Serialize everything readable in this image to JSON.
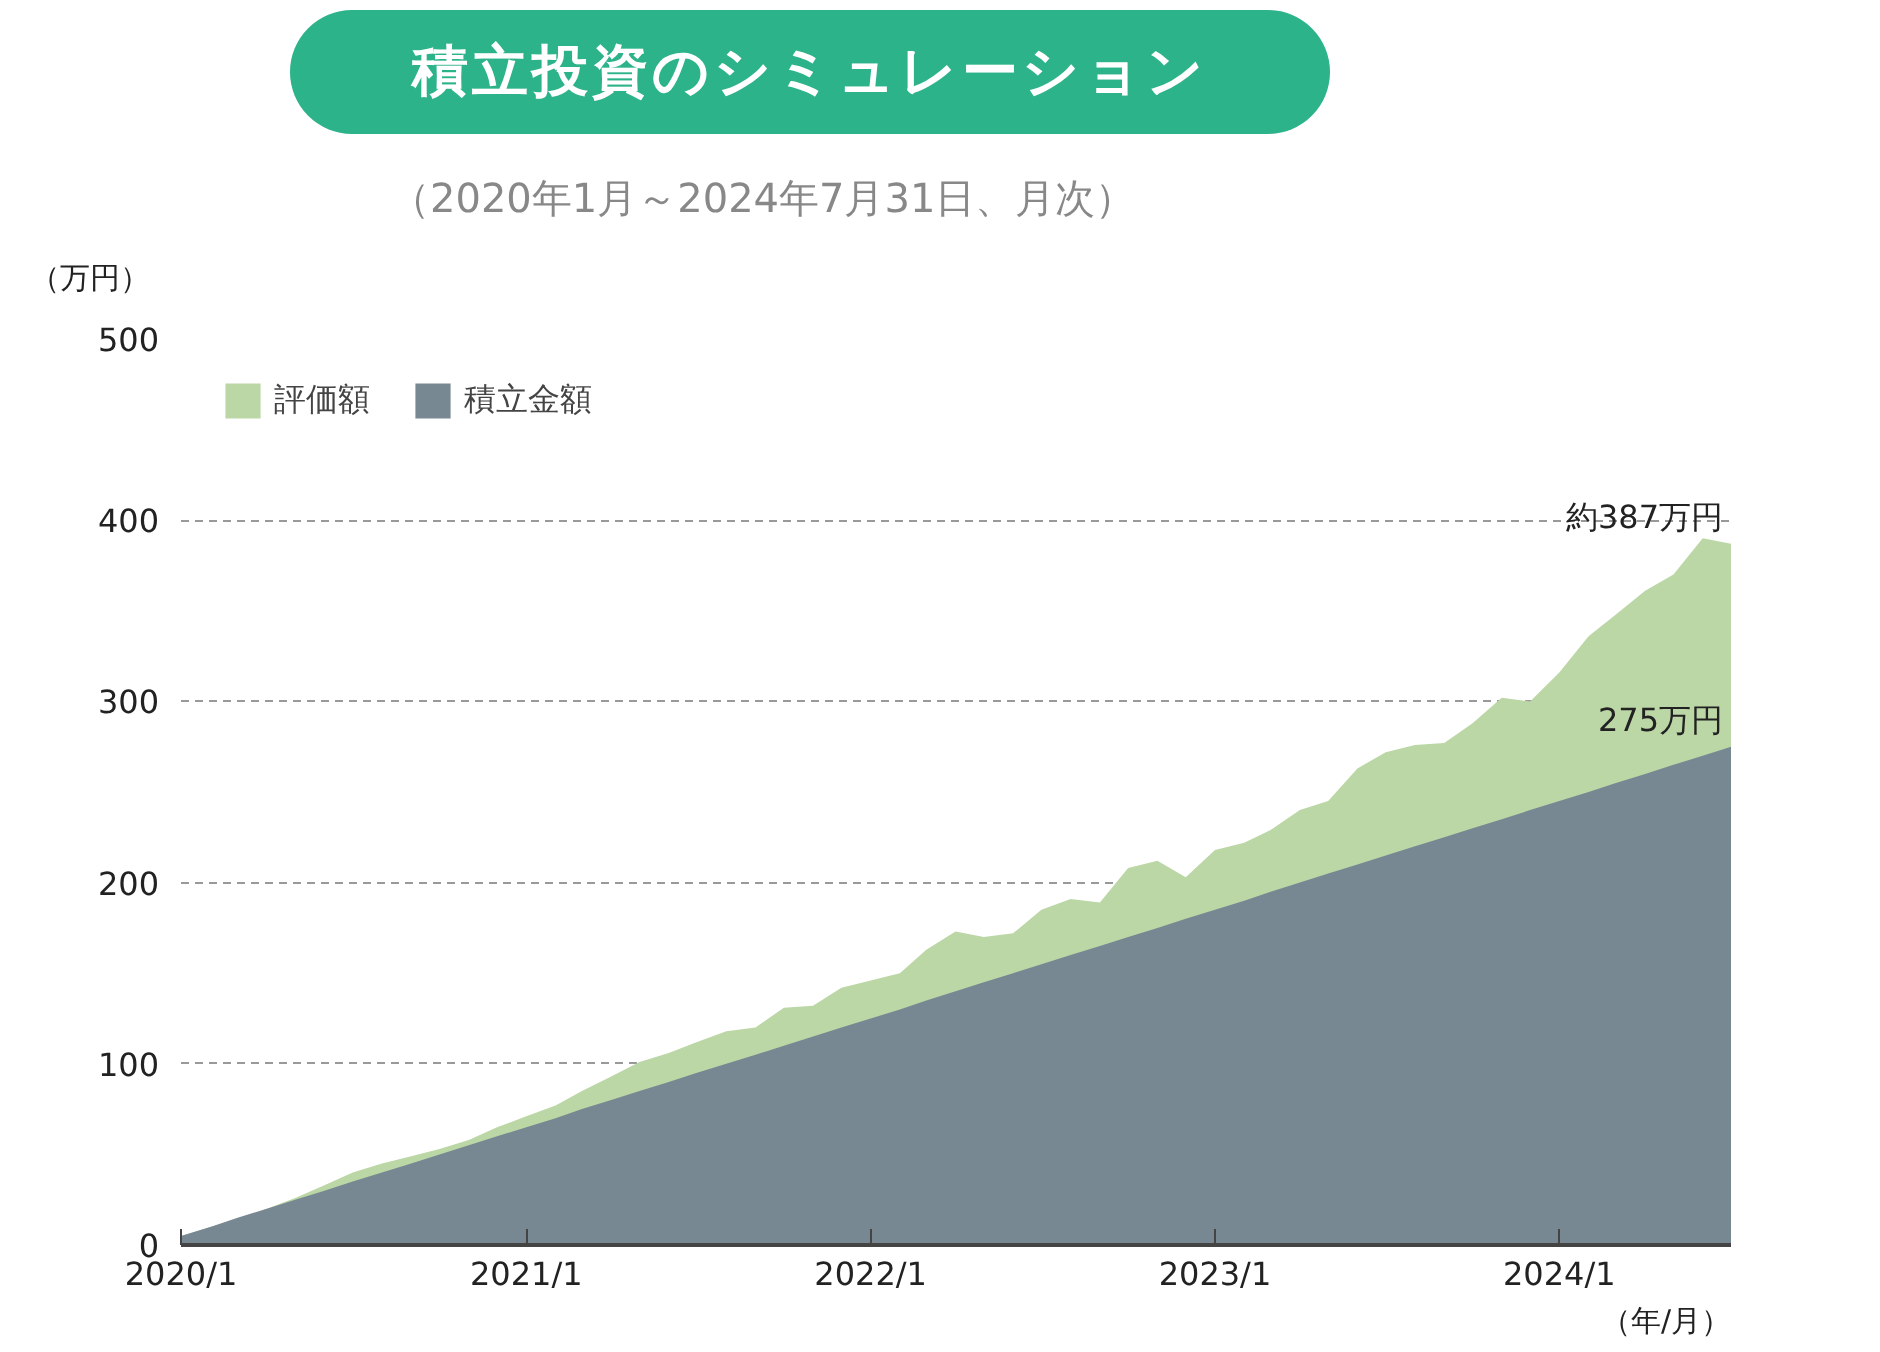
{
  "chart_data": {
    "type": "area",
    "title": "積立投資のシミュレーション",
    "subtitle": "（2020年1月～2024年7月31日、月次）",
    "ylabel": "（万円）",
    "xlabel": "（年/月）",
    "x": [
      "2020-01",
      "2020-02",
      "2020-03",
      "2020-04",
      "2020-05",
      "2020-06",
      "2020-07",
      "2020-08",
      "2020-09",
      "2020-10",
      "2020-11",
      "2020-12",
      "2021-01",
      "2021-02",
      "2021-03",
      "2021-04",
      "2021-05",
      "2021-06",
      "2021-07",
      "2021-08",
      "2021-09",
      "2021-10",
      "2021-11",
      "2021-12",
      "2022-01",
      "2022-02",
      "2022-03",
      "2022-04",
      "2022-05",
      "2022-06",
      "2022-07",
      "2022-08",
      "2022-09",
      "2022-10",
      "2022-11",
      "2022-12",
      "2023-01",
      "2023-02",
      "2023-03",
      "2023-04",
      "2023-05",
      "2023-06",
      "2023-07",
      "2023-08",
      "2023-09",
      "2023-10",
      "2023-11",
      "2023-12",
      "2024-01",
      "2024-02",
      "2024-03",
      "2024-04",
      "2024-05",
      "2024-06",
      "2024-07"
    ],
    "series": [
      {
        "name": "評価額",
        "color": "#bcd7a6",
        "values": [
          5,
          10,
          14,
          20,
          26,
          33,
          40,
          45,
          49,
          53,
          58,
          65,
          71,
          77,
          85,
          93,
          101,
          106,
          112,
          118,
          120,
          131,
          132,
          142,
          146,
          150,
          163,
          173,
          170,
          172,
          185,
          191,
          189,
          208,
          212,
          203,
          218,
          222,
          229,
          240,
          245,
          263,
          272,
          276,
          277,
          288,
          302,
          300,
          316,
          336,
          348,
          361,
          370,
          390,
          387
        ]
      },
      {
        "name": "積立金額",
        "color": "#778893",
        "values": [
          5,
          10,
          15,
          20,
          25,
          30,
          35,
          40,
          45,
          50,
          55,
          60,
          65,
          70,
          75,
          80,
          85,
          90,
          95,
          100,
          105,
          110,
          115,
          120,
          125,
          130,
          135,
          140,
          145,
          150,
          155,
          160,
          165,
          170,
          175,
          180,
          185,
          190,
          195,
          200,
          205,
          210,
          215,
          220,
          225,
          230,
          235,
          240,
          245,
          250,
          255,
          260,
          265,
          270,
          275
        ]
      }
    ],
    "xlim": [
      "2020-01",
      "2024-07"
    ],
    "xticks": [
      {
        "value": "2020-01",
        "label": "2020/1"
      },
      {
        "value": "2021-01",
        "label": "2021/1"
      },
      {
        "value": "2022-01",
        "label": "2022/1"
      },
      {
        "value": "2023-01",
        "label": "2023/1"
      },
      {
        "value": "2024-01",
        "label": "2024/1"
      }
    ],
    "ylim": [
      0,
      500
    ],
    "yticks": [
      0,
      100,
      200,
      300,
      400,
      500
    ],
    "grid": "y",
    "legend": "top left",
    "annotations": [
      {
        "text": "約387万円",
        "x": "2024-07",
        "y": 387
      },
      {
        "text": "275万円",
        "x": "2024-07",
        "y": 275
      }
    ]
  }
}
